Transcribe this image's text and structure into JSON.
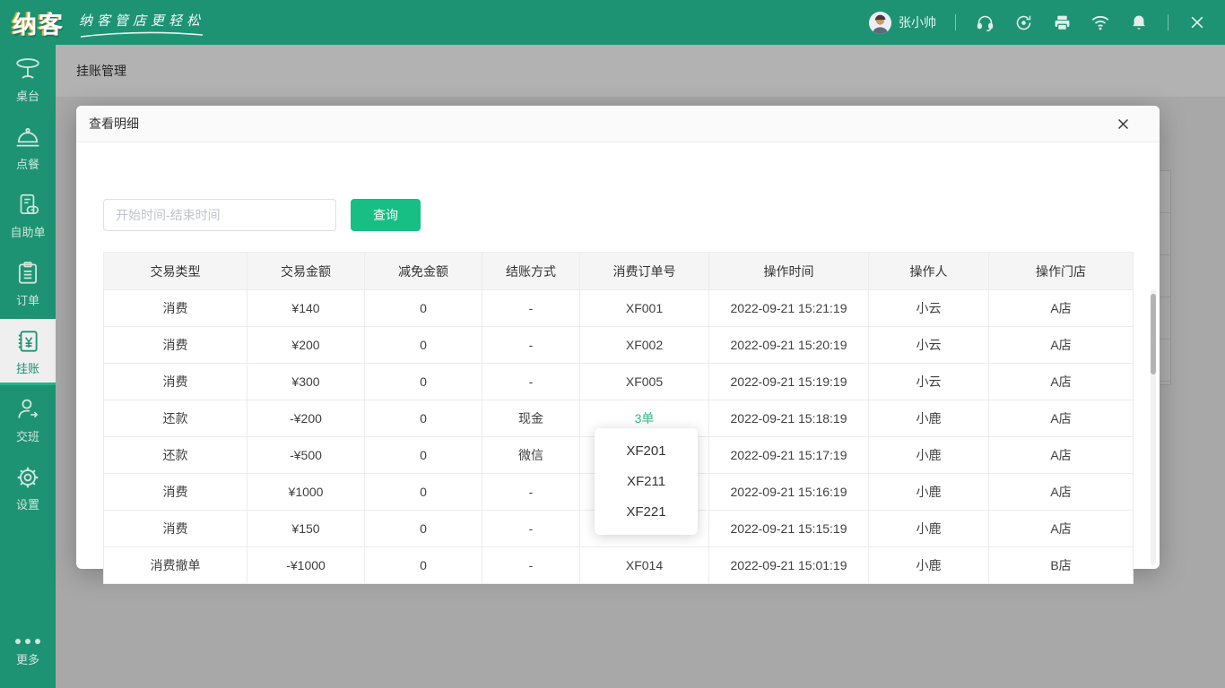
{
  "brand": {
    "logo_text": "纳客",
    "tagline": "纳客管店更轻松"
  },
  "topbar": {
    "username": "张小帅",
    "icons": [
      "headset-icon",
      "sync-icon",
      "printer-icon",
      "wifi-icon",
      "bell-icon",
      "close-icon"
    ]
  },
  "sidebar": {
    "items": [
      {
        "label": "桌台",
        "active": false
      },
      {
        "label": "点餐",
        "active": false
      },
      {
        "label": "自助单",
        "active": false
      },
      {
        "label": "订单",
        "active": false
      },
      {
        "label": "挂账",
        "active": true
      },
      {
        "label": "交班",
        "active": false
      },
      {
        "label": "设置",
        "active": false
      }
    ],
    "more_label": "更多"
  },
  "page": {
    "title": "挂账管理"
  },
  "modal": {
    "title": "查看明细",
    "search_placeholder": "开始时间-结束时间",
    "query_button": "查询",
    "table": {
      "headers": [
        "交易类型",
        "交易金额",
        "减免金额",
        "结账方式",
        "消费订单号",
        "操作时间",
        "操作人",
        "操作门店"
      ],
      "rows": [
        [
          "消费",
          "¥140",
          "0",
          "-",
          "XF001",
          "2022-09-21 15:21:19",
          "小云",
          "A店"
        ],
        [
          "消费",
          "¥200",
          "0",
          "-",
          "XF002",
          "2022-09-21 15:20:19",
          "小云",
          "A店"
        ],
        [
          "消费",
          "¥300",
          "0",
          "-",
          "XF005",
          "2022-09-21 15:19:19",
          "小云",
          "A店"
        ],
        [
          "还款",
          "-¥200",
          "0",
          "现金",
          "3单",
          "2022-09-21 15:18:19",
          "小鹿",
          "A店"
        ],
        [
          "还款",
          "-¥500",
          "0",
          "微信",
          "",
          "2022-09-21 15:17:19",
          "小鹿",
          "A店"
        ],
        [
          "消费",
          "¥1000",
          "0",
          "-",
          "",
          "2022-09-21 15:16:19",
          "小鹿",
          "A店"
        ],
        [
          "消费",
          "¥150",
          "0",
          "-",
          "",
          "2022-09-21 15:15:19",
          "小鹿",
          "A店"
        ],
        [
          "消费撤单",
          "-¥1000",
          "0",
          "-",
          "XF014",
          "2022-09-21 15:01:19",
          "小鹿",
          "B店"
        ]
      ],
      "link_row_index": 3,
      "link_col_index": 4,
      "link_text": "3单"
    },
    "popup": {
      "items": [
        "XF201",
        "XF211",
        "XF221"
      ]
    }
  },
  "colors": {
    "brand_green": "#1d9374",
    "accent_green": "#17bf84",
    "link_green": "#2dbd87",
    "active_underline": "#25b489",
    "header_bg": "#f5f5f5",
    "overlay": "rgba(0,0,0,0.30)"
  }
}
